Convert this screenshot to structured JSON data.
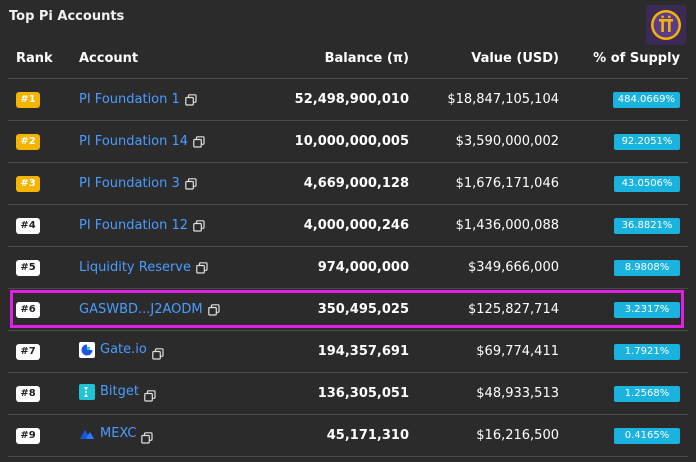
{
  "header": {
    "title": "Top Pi Accounts",
    "logo_icon": "pi-network-logo-icon"
  },
  "table": {
    "columns": [
      "Rank",
      "Account",
      "Balance (π)",
      "Value (USD)",
      "% of Supply"
    ],
    "rows": [
      {
        "rank": "#1",
        "rank_style": "gold",
        "account": "PI Foundation 1",
        "icon": "",
        "balance": "52,498,900,010",
        "value": "$18,847,105,104",
        "pct": "484.0669%"
      },
      {
        "rank": "#2",
        "rank_style": "gold",
        "account": "PI Foundation 14",
        "icon": "",
        "balance": "10,000,000,005",
        "value": "$3,590,000,002",
        "pct": "92.2051%"
      },
      {
        "rank": "#3",
        "rank_style": "gold",
        "account": "PI Foundation 3",
        "icon": "",
        "balance": "4,669,000,128",
        "value": "$1,676,171,046",
        "pct": "43.0506%"
      },
      {
        "rank": "#4",
        "rank_style": "white",
        "account": "PI Foundation 12",
        "icon": "",
        "balance": "4,000,000,246",
        "value": "$1,436,000,088",
        "pct": "36.8821%"
      },
      {
        "rank": "#5",
        "rank_style": "white",
        "account": "Liquidity Reserve",
        "icon": "",
        "balance": "974,000,000",
        "value": "$349,666,000",
        "pct": "8.9808%"
      },
      {
        "rank": "#6",
        "rank_style": "white",
        "account": "GASWBD...J2AODM",
        "icon": "",
        "balance": "350,495,025",
        "value": "$125,827,714",
        "pct": "3.2317%"
      },
      {
        "rank": "#7",
        "rank_style": "white",
        "account": "Gate.io",
        "icon": "gateio-icon",
        "balance": "194,357,691",
        "value": "$69,774,411",
        "pct": "1.7921%"
      },
      {
        "rank": "#8",
        "rank_style": "white",
        "account": "Bitget",
        "icon": "bitget-icon",
        "balance": "136,305,051",
        "value": "$48,933,513",
        "pct": "1.2568%"
      },
      {
        "rank": "#9",
        "rank_style": "white",
        "account": "MEXC",
        "icon": "mexc-icon",
        "balance": "45,171,310",
        "value": "$16,216,500",
        "pct": "0.4165%"
      }
    ]
  },
  "colors": {
    "background": "#2b2b2b",
    "link": "#4a9cff",
    "gold": "#f4b400",
    "badge": "#1ab2df",
    "highlight": "#e31ee6"
  }
}
